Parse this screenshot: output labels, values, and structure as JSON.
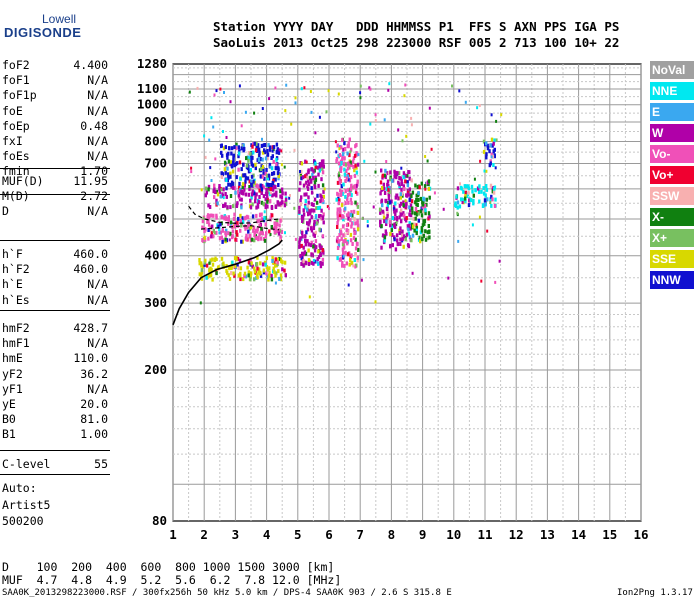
{
  "logo": {
    "top": "Lowell",
    "bottom": "DIGISONDE"
  },
  "header": {
    "line1": "Station YYYY DAY   DDD HHMMSS P1  FFS S AXN PPS IGA PS",
    "line2": "SaoLuis 2013 Oct25 298 223000 RSF 005 2 713 100 10+ 22"
  },
  "params_group1": [
    {
      "name": "foF2",
      "value": "4.400"
    },
    {
      "name": "foF1",
      "value": "N/A"
    },
    {
      "name": "foF1p",
      "value": "N/A"
    },
    {
      "name": "foE",
      "value": "N/A"
    },
    {
      "name": "foEp",
      "value": "0.48"
    },
    {
      "name": "fxI",
      "value": "N/A"
    },
    {
      "name": "foEs",
      "value": "N/A"
    },
    {
      "name": "fmin",
      "value": "1.70"
    }
  ],
  "params_group2": [
    {
      "name": "MUF(D)",
      "value": "11.95"
    },
    {
      "name": "M(D)",
      "value": "2.72"
    },
    {
      "name": "D",
      "value": "N/A"
    }
  ],
  "params_group3": [
    {
      "name": "h`F",
      "value": "460.0"
    },
    {
      "name": "h`F2",
      "value": "460.0"
    },
    {
      "name": "h`E",
      "value": "N/A"
    },
    {
      "name": "h`Es",
      "value": "N/A"
    }
  ],
  "params_group4": [
    {
      "name": "hmF2",
      "value": "428.7"
    },
    {
      "name": "hmF1",
      "value": "N/A"
    },
    {
      "name": "hmE",
      "value": "110.0"
    },
    {
      "name": "yF2",
      "value": "36.2"
    },
    {
      "name": "yF1",
      "value": "N/A"
    },
    {
      "name": "yE",
      "value": "20.0"
    },
    {
      "name": "B0",
      "value": "81.0"
    },
    {
      "name": "B1",
      "value": "1.00"
    }
  ],
  "params_group5": [
    {
      "name": "C-level",
      "value": "55"
    }
  ],
  "meta": {
    "line1": "Auto:",
    "line2": "Artist5",
    "line3": "500200"
  },
  "legend": [
    {
      "label": "NoVal",
      "color": "#a0a0a0"
    },
    {
      "label": "NNE",
      "color": "#00e8f0"
    },
    {
      "label": "E",
      "color": "#3aa8f0"
    },
    {
      "label": "W",
      "color": "#b000a8"
    },
    {
      "label": "Vo-",
      "color": "#f050b8"
    },
    {
      "label": "Vo+",
      "color": "#f00030"
    },
    {
      "label": "SSW",
      "color": "#f8b0b0"
    },
    {
      "label": "X-",
      "color": "#108010"
    },
    {
      "label": "X+",
      "color": "#78c060"
    },
    {
      "label": "SSE",
      "color": "#d8d800"
    },
    {
      "label": "NNW",
      "color": "#1010d0"
    }
  ],
  "chart_data": {
    "type": "scatter",
    "xlim": [
      1,
      16
    ],
    "ylim": [
      80,
      1280
    ],
    "x_ticks": [
      1,
      2,
      3,
      4,
      5,
      6,
      7,
      8,
      9,
      10,
      11,
      12,
      13,
      14,
      15,
      16
    ],
    "y_ticks": [
      80,
      200,
      300,
      400,
      500,
      600,
      700,
      800,
      900,
      1000,
      1100,
      1280
    ],
    "y_scale": "log",
    "grid": true,
    "clusters": [
      {
        "x": [
          1.8,
          4.6
        ],
        "y": [
          350,
          400
        ],
        "color": "#d8d800"
      },
      {
        "x": [
          1.9,
          4.5
        ],
        "y": [
          440,
          520
        ],
        "color": "#f050b8"
      },
      {
        "x": [
          2.0,
          4.6
        ],
        "y": [
          540,
          620
        ],
        "color": "#b000a8"
      },
      {
        "x": [
          2.5,
          4.4
        ],
        "y": [
          620,
          800
        ],
        "color": "#1010d0"
      },
      {
        "x": [
          5.0,
          5.8
        ],
        "y": [
          380,
          720
        ],
        "color": "#b000a8"
      },
      {
        "x": [
          6.2,
          6.9
        ],
        "y": [
          380,
          820
        ],
        "color": "#f050b8"
      },
      {
        "x": [
          7.6,
          8.6
        ],
        "y": [
          420,
          680
        ],
        "color": "#b000a8"
      },
      {
        "x": [
          8.6,
          9.2
        ],
        "y": [
          440,
          640
        ],
        "color": "#108010"
      },
      {
        "x": [
          10.0,
          11.3
        ],
        "y": [
          540,
          620
        ],
        "color": "#00e8f0"
      },
      {
        "x": [
          10.9,
          11.3
        ],
        "y": [
          700,
          820
        ],
        "color": "#1010d0"
      }
    ],
    "trace_curve": {
      "x": [
        1.0,
        1.2,
        1.5,
        1.9,
        2.4,
        3.0,
        3.6,
        4.1,
        4.4,
        4.5
      ],
      "y": [
        263,
        290,
        320,
        350,
        368,
        380,
        395,
        415,
        430,
        440
      ]
    },
    "oblique_curves": [
      {
        "x": [
          1.5,
          1.7,
          2.0,
          2.5,
          3.0,
          3.5,
          4.0,
          4.4
        ],
        "y": [
          540,
          515,
          500,
          490,
          487,
          488,
          495,
          500
        ]
      },
      {
        "x": [
          1.9,
          2.5,
          3.0,
          3.5,
          4.0,
          4.4
        ],
        "y": [
          470,
          474,
          478,
          480,
          472,
          468
        ]
      }
    ]
  },
  "footer": {
    "line1": "D    100  200  400  600  800 1000 1500 3000 [km]",
    "line2": "MUF  4.7  4.8  4.9  5.2  5.6  6.2  7.8 12.0 [MHz]",
    "line3": "SAA0K_2013298223000.RSF / 300fx256h 50 kHz 5.0 km / DPS-4 SAA0K 903 / 2.6 S 315.8 E",
    "version": "Ion2Png 1.3.17"
  }
}
